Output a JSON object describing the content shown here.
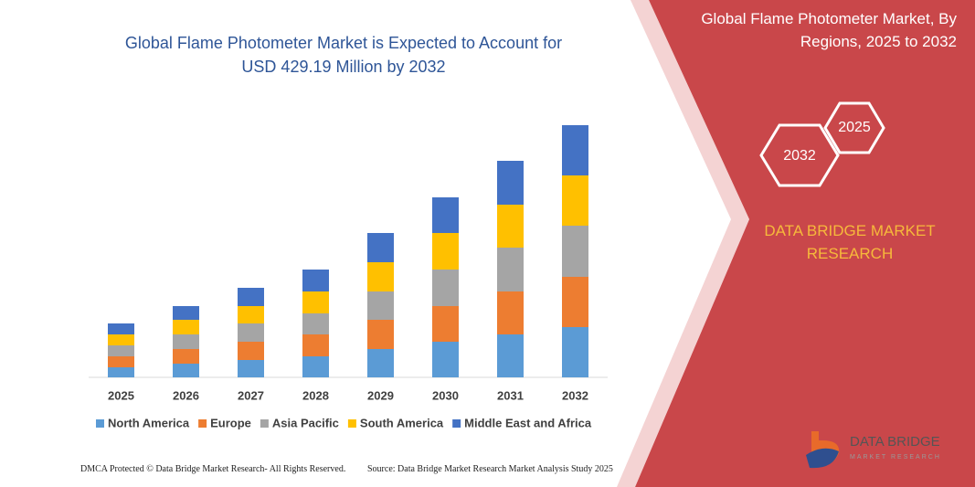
{
  "chart_data": {
    "type": "stacked-bar",
    "title": "Global Flame Photometer Market is Expected to Account for USD 429.19 Million by 2032",
    "categories": [
      "2025",
      "2026",
      "2027",
      "2028",
      "2029",
      "2030",
      "2031",
      "2032"
    ],
    "series": [
      {
        "name": "North America",
        "color": "#5b9bd5",
        "values": [
          11,
          15,
          19,
          23,
          31,
          39,
          47,
          55
        ]
      },
      {
        "name": "Europe",
        "color": "#ed7d31",
        "values": [
          12,
          16,
          20,
          24,
          32,
          39,
          47,
          55
        ]
      },
      {
        "name": "Asia Pacific",
        "color": "#a5a5a5",
        "values": [
          12,
          16,
          20,
          23,
          31,
          40,
          48,
          56
        ]
      },
      {
        "name": "South America",
        "color": "#ffc000",
        "values": [
          12,
          16,
          19,
          24,
          32,
          40,
          47,
          55
        ]
      },
      {
        "name": "Middle East and Africa",
        "color": "#4472c4",
        "values": [
          12,
          15,
          20,
          24,
          32,
          39,
          48,
          55
        ]
      }
    ]
  },
  "panel": {
    "title": "Global Flame Photometer Market, By Regions, 2025 to 2032",
    "hex_labels": [
      "2025",
      "2032"
    ],
    "brand": "DATA BRIDGE MARKET RESEARCH"
  },
  "logo": {
    "name": "DATA BRIDGE",
    "tagline": "MARKET RESEARCH"
  },
  "footer": {
    "left": "DMCA Protected © Data Bridge Market Research- All Rights Reserved.",
    "right": "Source: Data Bridge Market Research  Market Analysis Study 2025"
  }
}
